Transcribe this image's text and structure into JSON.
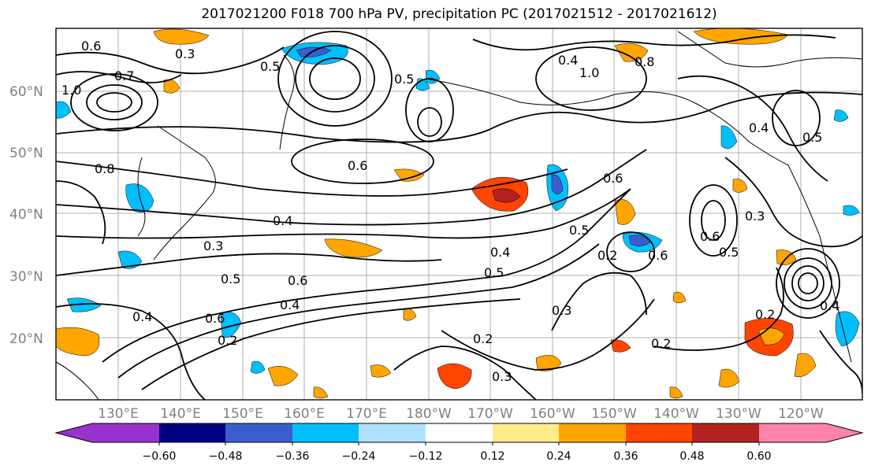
{
  "map": {
    "title": "2017021200 F018 700 hPa PV, precipitation PC (2017021512 - 2017021612)",
    "lat_labels": [
      "60°N",
      "50°N",
      "40°N",
      "30°N",
      "20°N"
    ],
    "lon_labels": [
      "130°E",
      "140°E",
      "150°E",
      "160°E",
      "170°E",
      "180°W",
      "170°W",
      "160°W",
      "150°W",
      "140°W",
      "130°W",
      "120°W"
    ],
    "contour_labels": [
      "0.6",
      "0.3",
      "0.5",
      "0.7",
      "1.0",
      "0.8",
      "0.6",
      "0.5",
      "0.8",
      "0.4",
      "0.6",
      "0.4",
      "0.3",
      "0.5",
      "0.6",
      "0.4",
      "0.4",
      "0.6",
      "0.2",
      "0.2",
      "0.5",
      "0.3",
      "0.5",
      "0.2",
      "0.3",
      "0.6",
      "0.3",
      "0.6",
      "0.5",
      "0.4",
      "0.5",
      "0.2",
      "0.2",
      "0.4",
      "1.0",
      "0.4"
    ],
    "colorbar": {
      "ticks": [
        "−0.60",
        "−0.48",
        "−0.36",
        "−0.24",
        "−0.12",
        "0.12",
        "0.24",
        "0.36",
        "0.48",
        "0.60"
      ],
      "colors": [
        "#9932cc",
        "#000080",
        "#3a5fcd",
        "#00bfff",
        "#b0e2ff",
        "#ffffff",
        "#ffec8b",
        "#ffa500",
        "#ff4500",
        "#b22222",
        "#ff82ab",
        "#ff82ab"
      ]
    }
  }
}
